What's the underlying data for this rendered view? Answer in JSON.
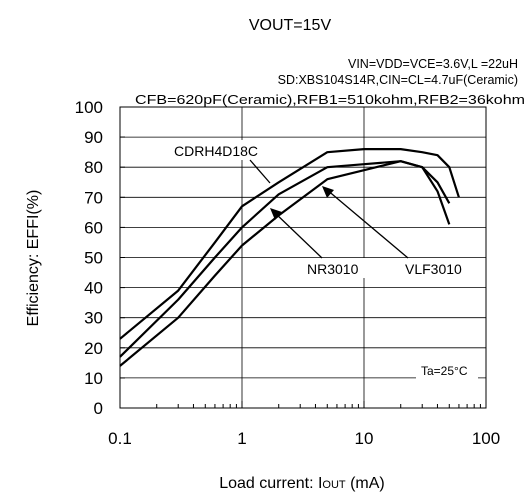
{
  "chart_data": {
    "type": "line",
    "title": "VOUT=15V",
    "conditions": [
      "VIN=VDD=VCE=3.6V,L =22uH",
      "SD:XBS104S14R,CIN=CL=4.7uF(Ceramic)",
      "CFB=620pF(Ceramic),RFB1=510kohm,RFB2=36kohm"
    ],
    "xlabel": {
      "prefix": "Load current: I",
      "sub": "OUT",
      "suffix": " (mA)"
    },
    "ylabel": "Efficiency: EFFI(%)",
    "xscale": "log",
    "xlim": [
      0.1,
      100
    ],
    "ylim": [
      0,
      100
    ],
    "xticks": [
      0.1,
      1,
      10,
      100
    ],
    "xtick_labels": [
      "0.1",
      "1",
      "10",
      "100"
    ],
    "yticks": [
      0,
      10,
      20,
      30,
      40,
      50,
      60,
      70,
      80,
      90,
      100
    ],
    "ytick_labels": [
      "0",
      "10",
      "20",
      "30",
      "40",
      "50",
      "60",
      "70",
      "80",
      "90",
      "100"
    ],
    "grid": true,
    "series": [
      {
        "name": "CDRH4D18C",
        "x": [
          0.1,
          0.3,
          0.6,
          1,
          2,
          5,
          10,
          20,
          30,
          40,
          50,
          60
        ],
        "y": [
          23,
          39,
          55,
          67,
          75,
          85,
          86,
          86,
          85,
          84,
          80,
          70
        ]
      },
      {
        "name": "NR3010",
        "x": [
          0.1,
          0.3,
          0.6,
          1,
          2,
          5,
          10,
          20,
          30,
          40,
          50
        ],
        "y": [
          14,
          30,
          44,
          54,
          64,
          76,
          79,
          82,
          80,
          75,
          68
        ]
      },
      {
        "name": "VLF3010",
        "x": [
          0.1,
          0.3,
          0.6,
          1,
          2,
          5,
          10,
          20,
          30,
          40,
          50
        ],
        "y": [
          17,
          36,
          50,
          60,
          71,
          80,
          81,
          82,
          80,
          72,
          61
        ]
      }
    ],
    "annotations": {
      "ambient": "Ta=25°C"
    }
  }
}
